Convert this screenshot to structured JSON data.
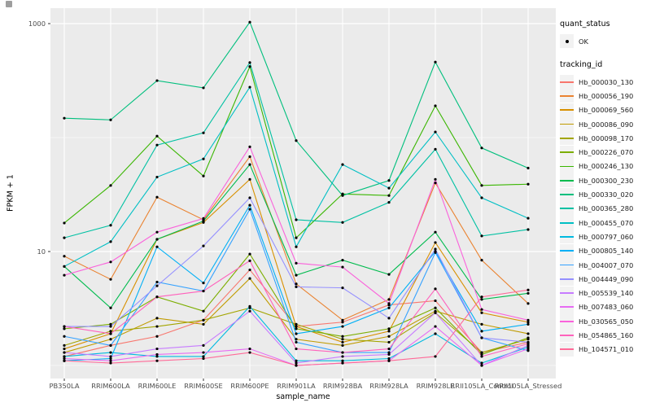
{
  "legend": {
    "quant_title": "quant_status",
    "quant_value": "OK",
    "tracking_title": "tracking_id"
  },
  "chart_data": {
    "type": "line",
    "title": "",
    "xlabel": "sample_name",
    "ylabel": "FPKM + 1",
    "y_scale": "log10",
    "y_major_ticks": [
      10,
      1000
    ],
    "y_minor_ticks": [
      1,
      100
    ],
    "ylim": [
      0.75,
      1400
    ],
    "grid": true,
    "panel_color": "#EBEBEB",
    "point_color": "#000000",
    "legend_position": "right",
    "categories": [
      "PB350LA",
      "RRIM600LA",
      "RRIM600LE",
      "RRIM600SE",
      "RRIM600PE",
      "RRIM901LA",
      "RRIM928BA",
      "RRIM928LA",
      "RRIM928LE",
      "RRII105LA_Control",
      "RRII105LA_Stressed"
    ],
    "series": [
      {
        "name": "Hb_000030_130",
        "color": "#F8766D",
        "values": [
          1.2,
          1.5,
          1.8,
          2.5,
          6.9,
          2.2,
          2.4,
          3.4,
          3.7,
          1.3,
          1.6
        ]
      },
      {
        "name": "Hb_000056_190",
        "color": "#EA8331",
        "values": [
          9.1,
          5.7,
          30,
          19,
          68,
          5.2,
          2.5,
          3.8,
          40,
          8.4,
          3.5
        ]
      },
      {
        "name": "Hb_000069_560",
        "color": "#D89000",
        "values": [
          1.4,
          1.9,
          12.8,
          18,
          43,
          2.2,
          1.6,
          2.0,
          12,
          2.9,
          2.4
        ]
      },
      {
        "name": "Hb_000086_090",
        "color": "#C09B00",
        "values": [
          1.3,
          1.7,
          2.6,
          2.3,
          5.8,
          1.7,
          1.5,
          1.8,
          3.0,
          2.3,
          1.9
        ]
      },
      {
        "name": "Hb_000098_170",
        "color": "#A3A500",
        "values": [
          1.5,
          2.0,
          2.2,
          2.5,
          3.2,
          2.3,
          1.7,
          1.6,
          2.9,
          1.3,
          1.7
        ]
      },
      {
        "name": "Hb_000226_070",
        "color": "#7CAE00",
        "values": [
          2.1,
          2.3,
          4.0,
          3.0,
          9.5,
          2.1,
          1.8,
          2.1,
          3.2,
          1.25,
          1.75
        ]
      },
      {
        "name": "Hb_000246_130",
        "color": "#39B600",
        "values": [
          17.8,
          38,
          103,
          46,
          420,
          13.2,
          32,
          31,
          190,
          38,
          39
        ]
      },
      {
        "name": "Hb_000300_230",
        "color": "#00BB4E",
        "values": [
          7.4,
          3.2,
          12.8,
          18.5,
          58,
          6.2,
          8.4,
          6.3,
          14.8,
          3.8,
          4.3
        ]
      },
      {
        "name": "Hb_000330_020",
        "color": "#00BF7D",
        "values": [
          148,
          143,
          316,
          273,
          1030,
          94,
          31,
          42,
          460,
          81,
          54
        ]
      },
      {
        "name": "Hb_000365_280",
        "color": "#00C1A3",
        "values": [
          13.2,
          17,
          86,
          110,
          455,
          19,
          18,
          27,
          79,
          13.7,
          15.6
        ]
      },
      {
        "name": "Hb_000455_070",
        "color": "#00BFC4",
        "values": [
          7.4,
          12.2,
          45,
          65,
          277,
          11,
          58,
          36,
          112,
          29.6,
          19.6
        ]
      },
      {
        "name": "Hb_000797_060",
        "color": "#00BAE0",
        "values": [
          1.2,
          1.3,
          1.2,
          1.2,
          3.3,
          1.1,
          1.1,
          1.15,
          1.9,
          1.05,
          1.45
        ]
      },
      {
        "name": "Hb_000805_140",
        "color": "#00B0F6",
        "values": [
          1.1,
          1.15,
          11,
          5.3,
          25.5,
          1.9,
          2.2,
          3.2,
          10,
          2.0,
          2.3
        ]
      },
      {
        "name": "Hb_004007_070",
        "color": "#35A2FF",
        "values": [
          1.8,
          1.5,
          5.4,
          4.5,
          23.5,
          1.6,
          1.3,
          1.3,
          9.8,
          1.75,
          1.35
        ]
      },
      {
        "name": "Hb_004449_090",
        "color": "#9590FF",
        "values": [
          2.2,
          2.2,
          5.0,
          11.2,
          29.6,
          4.9,
          4.8,
          2.6,
          10.5,
          1.75,
          1.6
        ]
      },
      {
        "name": "Hb_005539_140",
        "color": "#C77CFF",
        "values": [
          1.3,
          1.2,
          1.4,
          1.5,
          3.0,
          1.05,
          1.2,
          1.25,
          2.9,
          1.0,
          1.5
        ]
      },
      {
        "name": "Hb_007483_060",
        "color": "#E76BF3",
        "values": [
          1.15,
          1.1,
          1.25,
          1.3,
          1.4,
          1.0,
          1.05,
          1.1,
          2.2,
          1.0,
          1.4
        ]
      },
      {
        "name": "Hb_030565_050",
        "color": "#FA62DB",
        "values": [
          6.2,
          8.1,
          14.8,
          19.5,
          83,
          7.9,
          7.3,
          3.5,
          43,
          3.1,
          2.5
        ]
      },
      {
        "name": "Hb_054865_160",
        "color": "#FF62BC",
        "values": [
          2.2,
          1.9,
          4.0,
          4.5,
          8.3,
          1.4,
          1.3,
          1.4,
          4.7,
          1.2,
          1.55
        ]
      },
      {
        "name": "Hb_104571_010",
        "color": "#FF6A98",
        "values": [
          1.1,
          1.05,
          1.1,
          1.15,
          1.3,
          1.0,
          1.05,
          1.1,
          1.2,
          4.0,
          4.6
        ]
      }
    ]
  }
}
